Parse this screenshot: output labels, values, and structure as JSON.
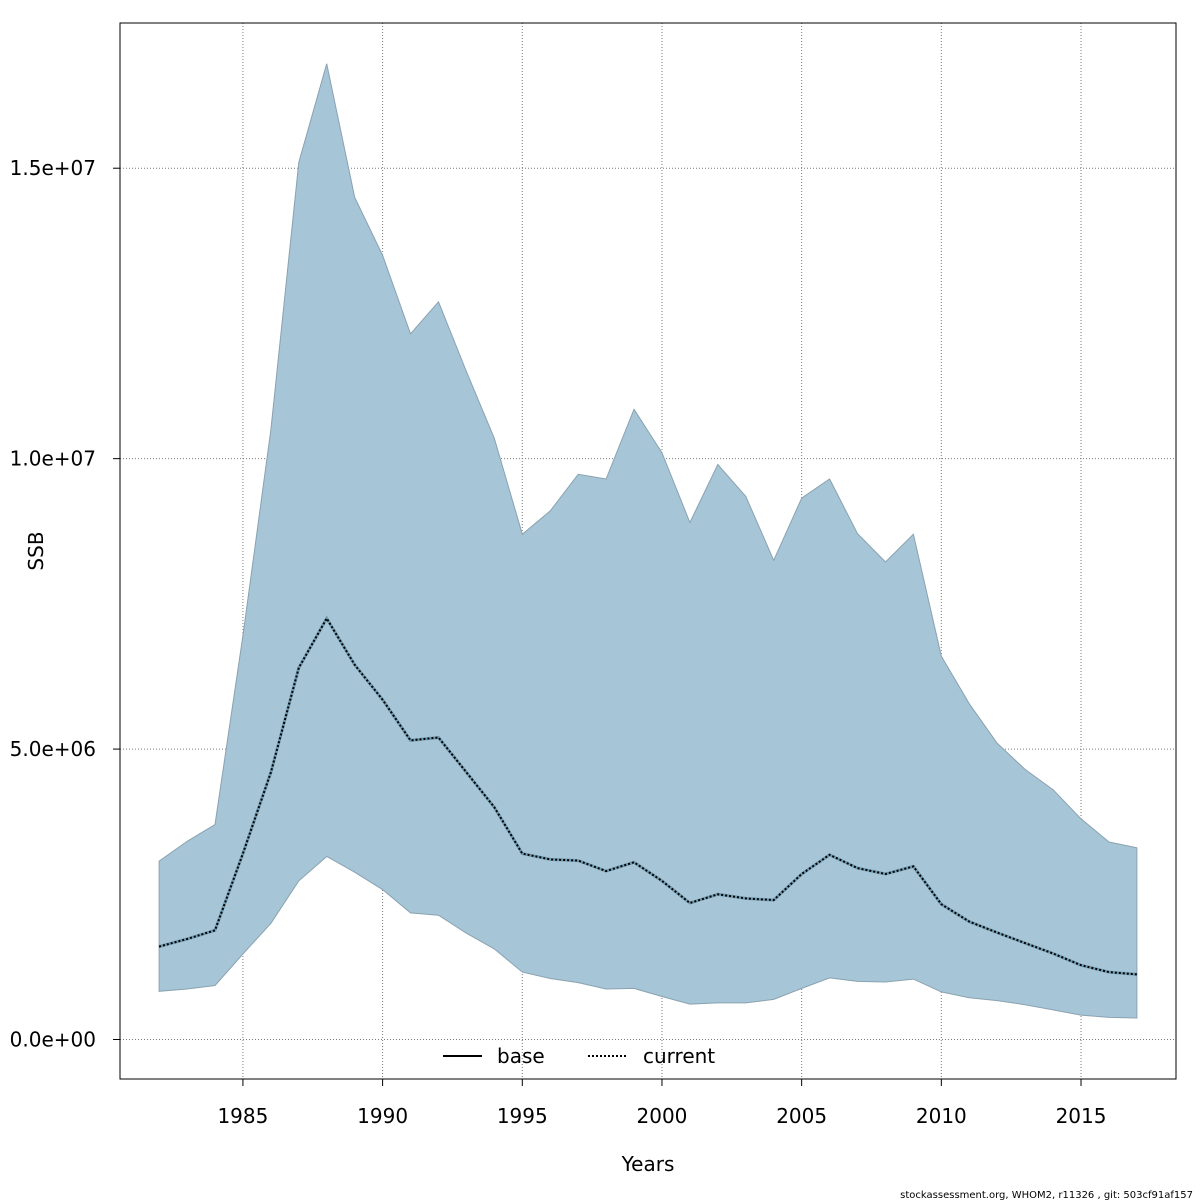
{
  "chart_data": {
    "type": "area",
    "xlabel": "Years",
    "ylabel": "SSB",
    "xlim": [
      1980.6,
      2018.4
    ],
    "ylim": [
      -680000,
      17500000
    ],
    "x_ticks": [
      1985,
      1990,
      1995,
      2000,
      2005,
      2010,
      2015
    ],
    "x_tick_labels": [
      "1985",
      "1990",
      "1995",
      "2000",
      "2005",
      "2010",
      "2015"
    ],
    "y_ticks": [
      0,
      5000000,
      10000000,
      15000000
    ],
    "y_tick_labels": [
      "0.0e+00",
      "5.0e+06",
      "1.0e+07",
      "1.5e+07"
    ],
    "grid": true,
    "legend_position": "bottom",
    "x": [
      1982,
      1983,
      1984,
      1985,
      1986,
      1987,
      1988,
      1989,
      1990,
      1991,
      1992,
      1993,
      1994,
      1995,
      1996,
      1997,
      1998,
      1999,
      2000,
      2001,
      2002,
      2003,
      2004,
      2005,
      2006,
      2007,
      2008,
      2009,
      2010,
      2011,
      2012,
      2013,
      2014,
      2015,
      2016,
      2017
    ],
    "series": [
      {
        "name": "current",
        "line_style": "dotted",
        "color": "#000000",
        "values": [
          1600000,
          1730000,
          1880000,
          3200000,
          4600000,
          6400000,
          7250000,
          6450000,
          5850000,
          5150000,
          5200000,
          4600000,
          4000000,
          3200000,
          3100000,
          3080000,
          2900000,
          3050000,
          2730000,
          2350000,
          2500000,
          2430000,
          2400000,
          2850000,
          3180000,
          2950000,
          2850000,
          2980000,
          2330000,
          2030000,
          1840000,
          1660000,
          1480000,
          1280000,
          1160000,
          1120000
        ],
        "lower": [
          830000,
          870000,
          930000,
          1470000,
          2000000,
          2730000,
          3150000,
          2880000,
          2580000,
          2180000,
          2140000,
          1830000,
          1560000,
          1160000,
          1050000,
          980000,
          870000,
          880000,
          740000,
          610000,
          630000,
          630000,
          690000,
          880000,
          1060000,
          1000000,
          990000,
          1040000,
          820000,
          720000,
          670000,
          600000,
          510000,
          420000,
          380000,
          370000
        ],
        "upper": [
          3070000,
          3410000,
          3700000,
          6950000,
          10500000,
          15100000,
          16800000,
          14500000,
          13500000,
          12150000,
          12700000,
          11500000,
          10350000,
          8700000,
          9100000,
          9730000,
          9650000,
          10850000,
          10100000,
          8900000,
          9900000,
          9350000,
          8250000,
          9320000,
          9650000,
          8710000,
          8220000,
          8700000,
          6600000,
          5780000,
          5100000,
          4650000,
          4300000,
          3800000,
          3400000,
          3300000
        ]
      }
    ],
    "legend": [
      {
        "label": "base",
        "line_style": "solid",
        "color": "#000000"
      },
      {
        "label": "current",
        "line_style": "dotted",
        "color": "#000000"
      }
    ],
    "band_color": "#a6c5d6",
    "band_stroke": "#8aa2b0"
  },
  "footer": "stockassessment.org, WHOM2, r11326 , git: 503cf91af157"
}
